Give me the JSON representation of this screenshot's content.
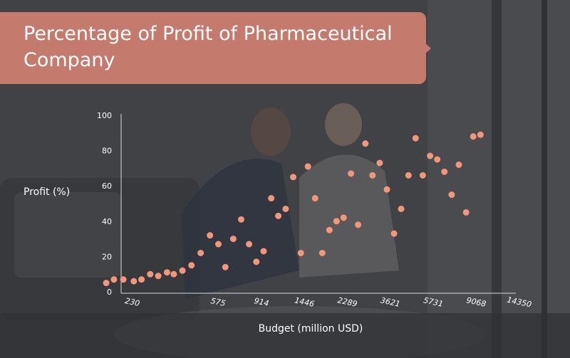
{
  "colors": {
    "background": "#404144",
    "banner": "#c47a6c",
    "point": "#f2967c",
    "axis": "#d9d9d9",
    "text": "#ffffff"
  },
  "chart_data": {
    "type": "scatter",
    "title": "Percentage of Profit of Pharmaceutical Company",
    "xlabel": "Budget (million USD)",
    "ylabel": "Profit (%)",
    "x_scale": "log",
    "xticks": [
      "230",
      "575",
      "914",
      "1446",
      "2289",
      "3621",
      "5731",
      "9068",
      "14350"
    ],
    "yticks": [
      "0",
      "20",
      "40",
      "60",
      "80",
      "100"
    ],
    "ylim": [
      0,
      100
    ],
    "grid": false,
    "points": [
      {
        "x": 175,
        "y": 5
      },
      {
        "x": 190,
        "y": 7
      },
      {
        "x": 210,
        "y": 7
      },
      {
        "x": 235,
        "y": 6
      },
      {
        "x": 255,
        "y": 7
      },
      {
        "x": 280,
        "y": 10
      },
      {
        "x": 305,
        "y": 9
      },
      {
        "x": 335,
        "y": 11
      },
      {
        "x": 360,
        "y": 10
      },
      {
        "x": 395,
        "y": 12
      },
      {
        "x": 435,
        "y": 15
      },
      {
        "x": 480,
        "y": 22
      },
      {
        "x": 530,
        "y": 32
      },
      {
        "x": 580,
        "y": 27
      },
      {
        "x": 625,
        "y": 14
      },
      {
        "x": 680,
        "y": 30
      },
      {
        "x": 740,
        "y": 41
      },
      {
        "x": 805,
        "y": 27
      },
      {
        "x": 870,
        "y": 17
      },
      {
        "x": 940,
        "y": 23
      },
      {
        "x": 1020,
        "y": 53
      },
      {
        "x": 1100,
        "y": 43
      },
      {
        "x": 1190,
        "y": 47
      },
      {
        "x": 1290,
        "y": 65
      },
      {
        "x": 1400,
        "y": 22
      },
      {
        "x": 1510,
        "y": 71
      },
      {
        "x": 1630,
        "y": 53
      },
      {
        "x": 1760,
        "y": 22
      },
      {
        "x": 1900,
        "y": 35
      },
      {
        "x": 2050,
        "y": 40
      },
      {
        "x": 2210,
        "y": 42
      },
      {
        "x": 2390,
        "y": 67
      },
      {
        "x": 2580,
        "y": 38
      },
      {
        "x": 2790,
        "y": 84
      },
      {
        "x": 3010,
        "y": 66
      },
      {
        "x": 3250,
        "y": 73
      },
      {
        "x": 3510,
        "y": 58
      },
      {
        "x": 3790,
        "y": 33
      },
      {
        "x": 4090,
        "y": 47
      },
      {
        "x": 4420,
        "y": 66
      },
      {
        "x": 4770,
        "y": 87
      },
      {
        "x": 5150,
        "y": 66
      },
      {
        "x": 5570,
        "y": 77
      },
      {
        "x": 6010,
        "y": 75
      },
      {
        "x": 6490,
        "y": 68
      },
      {
        "x": 7010,
        "y": 55
      },
      {
        "x": 7570,
        "y": 72
      },
      {
        "x": 8180,
        "y": 45
      },
      {
        "x": 8830,
        "y": 88
      },
      {
        "x": 9540,
        "y": 89
      }
    ]
  }
}
